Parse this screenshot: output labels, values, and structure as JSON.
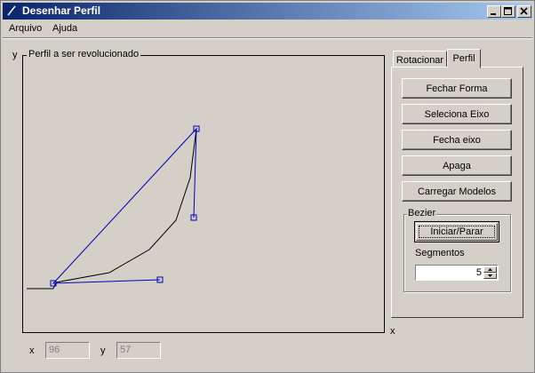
{
  "window": {
    "title": "Desenhar Perfil"
  },
  "menu": [
    "Arquivo",
    "Ajuda"
  ],
  "canvas": {
    "legend": "Perfil a ser revolucionado",
    "y_axis_label": "y",
    "x_axis_label": "x"
  },
  "coords": {
    "x_label": "x",
    "x_value": "96",
    "y_label": "y",
    "y_value": "57"
  },
  "tabs": [
    {
      "label": "Rotacionar",
      "active": false
    },
    {
      "label": "Perfil",
      "active": true
    }
  ],
  "buttons": {
    "fechar_forma": "Fechar Forma",
    "seleciona_eixo": "Seleciona Eixo",
    "fecha_eixo": "Fecha eixo",
    "apaga": "Apaga",
    "carregar_modelos": "Carregar Modelos"
  },
  "bezier": {
    "group_label": "Bezier",
    "start_stop_label": "Iniciar/Parar",
    "segments_label": "Segmentos",
    "segments_value": "5"
  },
  "colors": {
    "titlebar_start": "#0a246a",
    "titlebar_end": "#a6caf0",
    "face": "#d4d0c8",
    "control_polygon": "#0000c0",
    "curve": "#000000"
  }
}
